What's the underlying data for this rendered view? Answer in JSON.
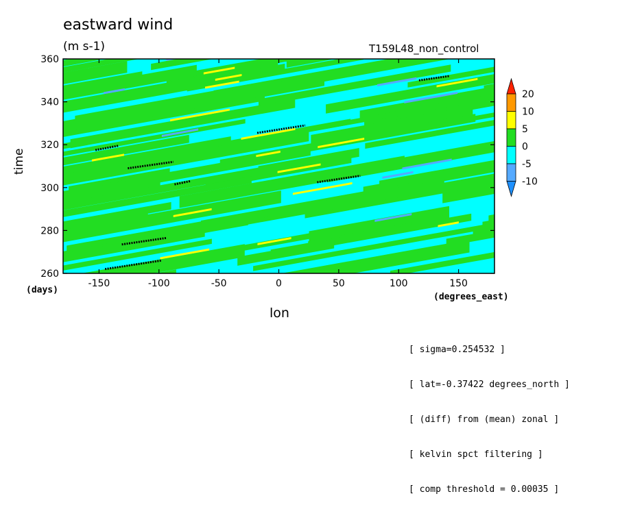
{
  "chart_data": {
    "type": "heatmap",
    "title": "eastward wind",
    "units": "(m s-1)",
    "subtitle_right": "T159L48_non_control",
    "xlabel": "lon",
    "xunit": "(degrees_east)",
    "ylabel": "time",
    "yunit": "(days)",
    "xlim": [
      -180,
      180
    ],
    "ylim": [
      260,
      360
    ],
    "xticks": [
      -150,
      -100,
      -50,
      0,
      50,
      100,
      150
    ],
    "yticks": [
      260,
      280,
      300,
      320,
      340,
      360
    ],
    "colorbar": {
      "levels": [
        -10,
        -5,
        0,
        5,
        10,
        20
      ],
      "colors": [
        "#1e90ff",
        "#55aaff",
        "#00ffff",
        "#22dd22",
        "#ffff00",
        "#ff9900",
        "#ff2200"
      ]
    },
    "background_band_color": "#00ffff",
    "positive_band_color": "#22dd22",
    "kelvin_tracks": [
      {
        "lon": [
          -153,
          -134
        ],
        "time": [
          317.5,
          319.5
        ]
      },
      {
        "lon": [
          -126,
          -88
        ],
        "time": [
          309,
          312
        ]
      },
      {
        "lon": [
          -87,
          -74
        ],
        "time": [
          301.5,
          303
        ]
      },
      {
        "lon": [
          -18,
          22
        ],
        "time": [
          325.5,
          329
        ]
      },
      {
        "lon": [
          117,
          142
        ],
        "time": [
          350,
          352
        ]
      },
      {
        "lon": [
          32,
          68
        ],
        "time": [
          302.5,
          305.5
        ]
      },
      {
        "lon": [
          -131,
          -94
        ],
        "time": [
          273.5,
          276.5
        ]
      },
      {
        "lon": [
          -145,
          -98
        ],
        "time": [
          262,
          266
        ]
      }
    ],
    "grid": false,
    "legend_position": "right"
  },
  "info_lines": [
    "[ sigma=0.254532 ]",
    "[ lat=-0.37422 degrees_north ]",
    "[ (diff) from (mean) zonal ]",
    "[ kelvin spct filtering ]",
    "[ comp threshold = 0.00035 ]"
  ]
}
